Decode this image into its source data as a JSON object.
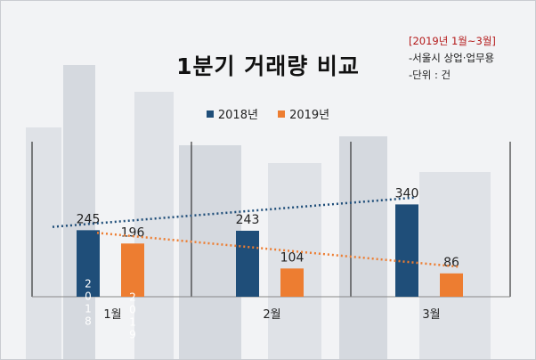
{
  "chart_data": {
    "type": "bar",
    "title": "1분기 거래량 비교",
    "categories": [
      "1월",
      "2월",
      "3월"
    ],
    "series": [
      {
        "name": "2018년",
        "color": "#1f4e79",
        "values": [
          245,
          243,
          340
        ]
      },
      {
        "name": "2019년",
        "color": "#ed7d31",
        "values": [
          196,
          104,
          86
        ]
      }
    ],
    "bar_inline_labels": [
      "2018",
      "2019"
    ],
    "trendlines": true,
    "legend_position": "top-center",
    "ylim": [
      0,
      400
    ]
  },
  "note": {
    "period": "[2019년 1월~3월]",
    "scope": "-서울시 상업·업무용",
    "unit": "-단위 : 건"
  }
}
